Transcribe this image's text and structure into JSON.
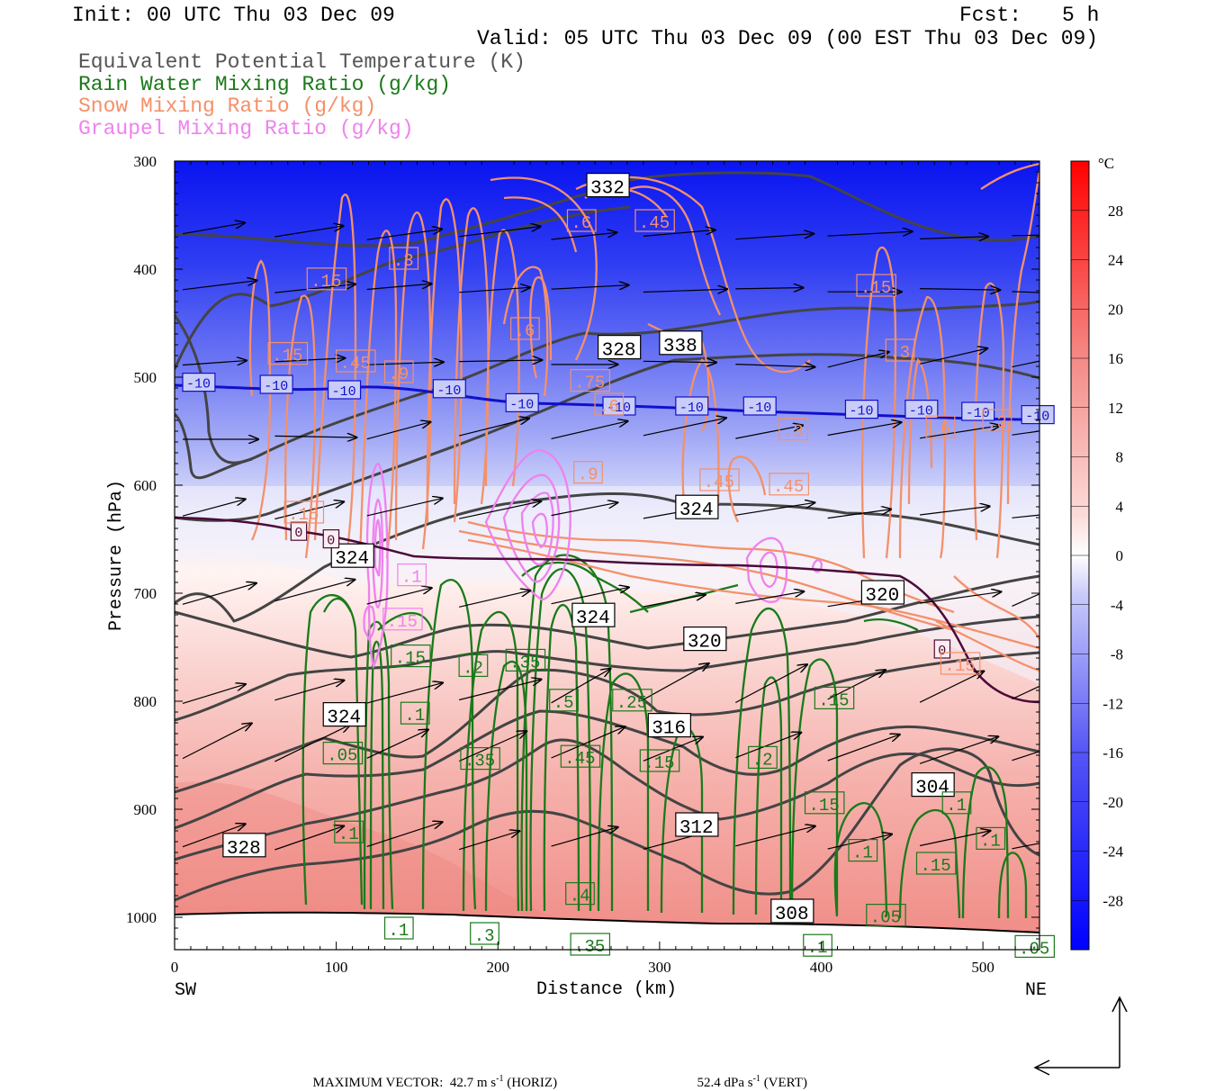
{
  "header": {
    "init": "Init: 00 UTC Thu 03 Dec 09",
    "fcst_label": "Fcst:",
    "fcst_value": "5 h",
    "valid": "Valid: 05 UTC Thu 03 Dec 09 (00 EST Thu 03 Dec 09)",
    "fields": [
      {
        "label": "Equivalent Potential Temperature (K)",
        "color": "#555555"
      },
      {
        "label": "Rain Water Mixing Ratio (g/kg)",
        "color": "#1a7a1a"
      },
      {
        "label": "Snow Mixing Ratio (g/kg)",
        "color": "#f4906a"
      },
      {
        "label": "Graupel Mixing Ratio (g/kg)",
        "color": "#ee82ee"
      }
    ]
  },
  "footer": {
    "max_vector_label": "MAXIMUM VECTOR:",
    "horiz": "42.7 m s",
    "horiz_tag": "(HORIZ)",
    "vert": "52.4 dPa s",
    "vert_tag": "(VERT)",
    "exponent": "-1"
  },
  "chart_data": {
    "type": "heatmap",
    "xlabel": "Distance (km)",
    "ylabel": "Pressure (hPa)",
    "xlim": [
      0,
      535
    ],
    "ylim": [
      1030,
      300
    ],
    "x_ticks": [
      0,
      100,
      200,
      300,
      400,
      500
    ],
    "y_ticks": [
      300,
      400,
      500,
      600,
      700,
      800,
      900,
      1000
    ],
    "x_end_labels": {
      "left": "SW",
      "right": "NE"
    },
    "colorbar": {
      "unit": "°C",
      "ticks": [
        28,
        24,
        20,
        16,
        12,
        8,
        4,
        0,
        -4,
        -8,
        -12,
        -16,
        -20,
        -24,
        -28
      ],
      "range": [
        -32,
        32
      ]
    },
    "temperature_field": [
      {
        "p": 300,
        "t": -32
      },
      {
        "p": 400,
        "t": -26
      },
      {
        "p": 500,
        "t": -14
      },
      {
        "p": 560,
        "t": -8
      },
      {
        "p": 610,
        "t": -3
      },
      {
        "p": 650,
        "t": 0
      },
      {
        "p": 700,
        "t": 3
      },
      {
        "p": 800,
        "t": 6
      },
      {
        "p": 900,
        "t": 9
      },
      {
        "p": 1000,
        "t": 12
      }
    ],
    "theta_e_contours": [
      {
        "label": "332",
        "x": 255,
        "p": 328
      },
      {
        "label": "328",
        "x": 262,
        "p": 478
      },
      {
        "label": "338",
        "x": 300,
        "p": 474
      },
      {
        "label": "324",
        "x": 310,
        "p": 626
      },
      {
        "label": "324",
        "x": 97,
        "p": 671
      },
      {
        "label": "324",
        "x": 246,
        "p": 726
      },
      {
        "label": "320",
        "x": 315,
        "p": 748
      },
      {
        "label": "320",
        "x": 425,
        "p": 705
      },
      {
        "label": "324",
        "x": 92,
        "p": 818
      },
      {
        "label": "316",
        "x": 293,
        "p": 828
      },
      {
        "label": "304",
        "x": 456,
        "p": 883
      },
      {
        "label": "328",
        "x": 30,
        "p": 939
      },
      {
        "label": "312",
        "x": 310,
        "p": 920
      },
      {
        "label": "308",
        "x": 369,
        "p": 1000
      }
    ],
    "isotherm_labels": [
      {
        "label": "-10",
        "x": 5,
        "p": 508
      },
      {
        "label": "-10",
        "x": 53,
        "p": 510
      },
      {
        "label": "-10",
        "x": 95,
        "p": 515
      },
      {
        "label": "-10",
        "x": 160,
        "p": 514
      },
      {
        "label": "-10",
        "x": 205,
        "p": 527
      },
      {
        "label": "-10",
        "x": 265,
        "p": 530
      },
      {
        "label": "-10",
        "x": 310,
        "p": 530
      },
      {
        "label": "-10",
        "x": 352,
        "p": 530
      },
      {
        "label": "-10",
        "x": 415,
        "p": 533
      },
      {
        "label": "-10",
        "x": 452,
        "p": 533
      },
      {
        "label": "-10",
        "x": 487,
        "p": 535
      },
      {
        "label": "-10",
        "x": 524,
        "p": 538
      }
    ],
    "freezing_labels": [
      {
        "label": "0",
        "x": 72,
        "p": 646
      },
      {
        "label": "0",
        "x": 92,
        "p": 653
      },
      {
        "label": "0",
        "x": 470,
        "p": 755
      }
    ],
    "rain_labels": [
      {
        "label": ".15",
        "x": 134,
        "p": 763
      },
      {
        "label": ".2",
        "x": 176,
        "p": 772
      },
      {
        "label": ".35",
        "x": 205,
        "p": 767
      },
      {
        "label": ".5",
        "x": 232,
        "p": 804
      },
      {
        "label": ".25",
        "x": 271,
        "p": 804
      },
      {
        "label": ".1",
        "x": 140,
        "p": 816
      },
      {
        "label": ".05",
        "x": 92,
        "p": 853
      },
      {
        "label": ".35",
        "x": 177,
        "p": 858
      },
      {
        "label": ".45",
        "x": 239,
        "p": 856
      },
      {
        "label": ".15",
        "x": 288,
        "p": 860
      },
      {
        "label": ".2",
        "x": 355,
        "p": 857
      },
      {
        "label": ".15",
        "x": 396,
        "p": 802
      },
      {
        "label": ".15",
        "x": 390,
        "p": 899
      },
      {
        "label": ".1",
        "x": 475,
        "p": 899
      },
      {
        "label": ".1",
        "x": 99,
        "p": 926
      },
      {
        "label": ".1",
        "x": 417,
        "p": 943
      },
      {
        "label": ".15",
        "x": 459,
        "p": 955
      },
      {
        "label": ".1",
        "x": 496,
        "p": 932
      },
      {
        "label": ".4",
        "x": 242,
        "p": 983
      },
      {
        "label": ".05",
        "x": 428,
        "p": 1003
      },
      {
        "label": ".1",
        "x": 130,
        "p": 1015
      },
      {
        "label": ".3",
        "x": 183,
        "p": 1020
      },
      {
        "label": ".35",
        "x": 245,
        "p": 1030
      },
      {
        "label": ".1",
        "x": 389,
        "p": 1031
      },
      {
        "label": ".05",
        "x": 520,
        "p": 1032
      }
    ],
    "snow_labels": [
      {
        "label": ".6",
        "x": 243,
        "p": 360
      },
      {
        "label": ".45",
        "x": 285,
        "p": 360
      },
      {
        "label": ".3",
        "x": 133,
        "p": 395
      },
      {
        "label": ".15",
        "x": 82,
        "p": 414
      },
      {
        "label": ".15",
        "x": 422,
        "p": 420
      },
      {
        "label": ".6",
        "x": 208,
        "p": 460
      },
      {
        "label": ".15",
        "x": 58,
        "p": 483
      },
      {
        "label": ".45",
        "x": 100,
        "p": 490
      },
      {
        "label": ".3",
        "x": 440,
        "p": 480
      },
      {
        "label": ".9",
        "x": 130,
        "p": 500
      },
      {
        "label": ".75",
        "x": 245,
        "p": 508
      },
      {
        "label": ".6",
        "x": 260,
        "p": 530
      },
      {
        "label": ".3",
        "x": 374,
        "p": 553
      },
      {
        "label": ".6",
        "x": 465,
        "p": 551
      },
      {
        "label": ".3",
        "x": 500,
        "p": 545
      },
      {
        "label": ".9",
        "x": 247,
        "p": 593
      },
      {
        "label": ".45",
        "x": 325,
        "p": 600
      },
      {
        "label": ".45",
        "x": 368,
        "p": 604
      },
      {
        "label": ".15",
        "x": 68,
        "p": 630
      },
      {
        "label": ".15",
        "x": 474,
        "p": 770
      }
    ],
    "graupel_labels": [
      {
        "label": ".1",
        "x": 138,
        "p": 688
      },
      {
        "label": ".15",
        "x": 129,
        "p": 729
      }
    ]
  }
}
